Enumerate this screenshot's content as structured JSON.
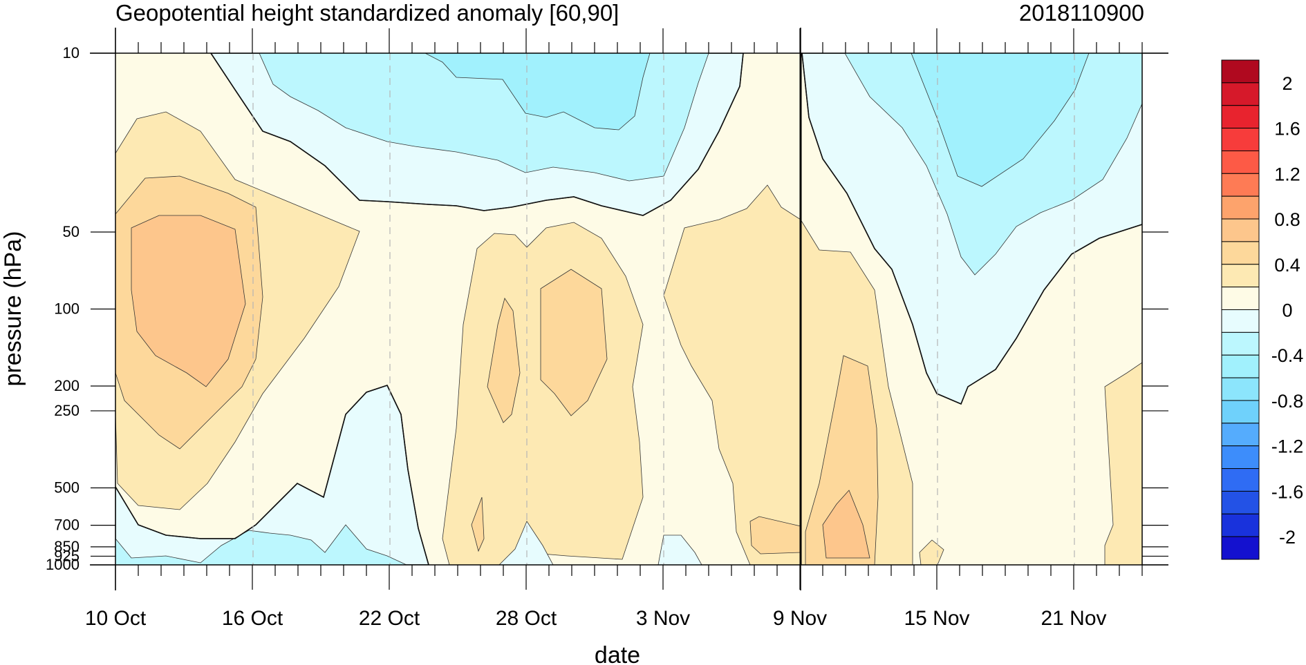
{
  "chart_data": {
    "type": "heatmap",
    "title": "Geopotential height standardized anomaly [60,90]",
    "title_right": "2018110900",
    "xlabel": "date",
    "ylabel": "pressure (hPa)",
    "x_ticks": [
      "10 Oct",
      "16 Oct",
      "22 Oct",
      "28 Oct",
      "3 Nov",
      "9 Nov",
      "15 Nov",
      "21 Nov"
    ],
    "y_ticks": [
      "10",
      "50",
      "100",
      "200",
      "250",
      "500",
      "700",
      "850",
      "925",
      "1000"
    ],
    "y_scale": "log",
    "ylim": [
      1000,
      10
    ],
    "dashed_vertical_gridlines": true,
    "analysis_date_marker": "9 Nov",
    "colorbar": {
      "tick_labels": [
        "2",
        "1.6",
        "1.2",
        "0.8",
        "0.4",
        "0",
        "-0.4",
        "-0.8",
        "-1.2",
        "-1.6",
        "-2"
      ],
      "levels": [
        -2.2,
        -2.0,
        -1.8,
        -1.6,
        -1.4,
        -1.2,
        -1.0,
        -0.8,
        -0.6,
        -0.4,
        -0.2,
        0,
        0.2,
        0.4,
        0.6,
        0.8,
        1.0,
        1.2,
        1.4,
        1.6,
        1.8,
        2.0,
        2.2
      ],
      "colors": [
        "#b0091f",
        "#d6192a",
        "#e8232e",
        "#f73c3b",
        "#fd5a46",
        "#fe7b55",
        "#fda36c",
        "#fdc68c",
        "#fdd89b",
        "#fde9b3",
        "#fefbe6",
        "#e7fcfe",
        "#bcf7fe",
        "#a1f1fd",
        "#8ce5fc",
        "#6fd1fb",
        "#55acfd",
        "#3d8dfb",
        "#2f6cf4",
        "#2352e6",
        "#1932dc",
        "#1411cf"
      ]
    },
    "features": [
      "positive anomaly 0.8 at 50-300 hPa around 12 Oct",
      "negative anomaly below -0.4 near 10-30 hPa late Oct",
      "negative anomaly -0.4 to -0.6 above 50 hPa around 17 Nov",
      "positive anomaly 0.8 at 200-1000 hPa around 11 Nov"
    ]
  }
}
